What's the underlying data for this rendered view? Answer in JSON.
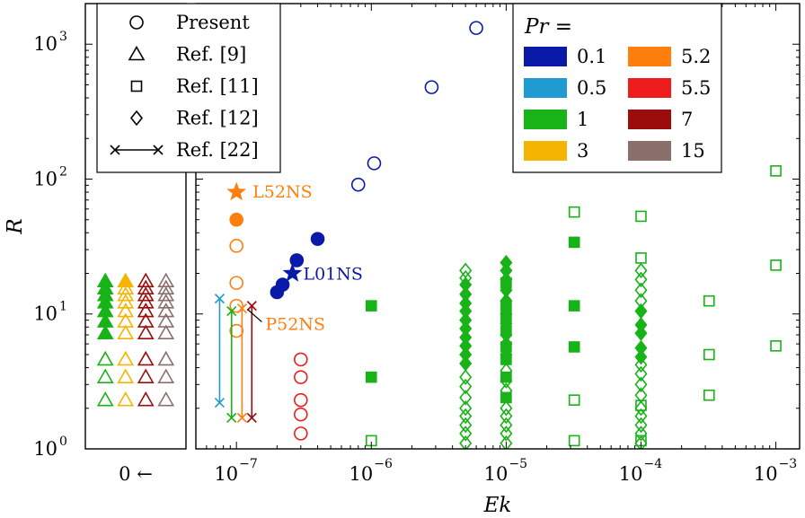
{
  "chart_data": {
    "type": "scatter",
    "xlabel": "Ek",
    "ylabel": "R",
    "xscale": "log",
    "yscale": "log",
    "xlim": [
      5e-08,
      0.0015
    ],
    "ylim": [
      1,
      2000
    ],
    "grid": false,
    "x_ticks": [
      {
        "value": 1e-07,
        "mant": "10",
        "exp": "−7"
      },
      {
        "value": 1e-06,
        "mant": "10",
        "exp": "−6"
      },
      {
        "value": 1e-05,
        "mant": "10",
        "exp": "−5"
      },
      {
        "value": 0.0001,
        "mant": "10",
        "exp": "−4"
      },
      {
        "value": 0.001,
        "mant": "10",
        "exp": "−3"
      }
    ],
    "y_ticks": [
      {
        "value": 1,
        "mant": "10",
        "exp": "0"
      },
      {
        "value": 10,
        "mant": "10",
        "exp": "1"
      },
      {
        "value": 100,
        "mant": "10",
        "exp": "2"
      },
      {
        "value": 1000,
        "mant": "10",
        "exp": "3"
      }
    ],
    "zero_panel_label": "0 ←",
    "pr_colors": {
      "0.1": "#0a1aa8",
      "0.5": "#1f9bd1",
      "1": "#17b317",
      "3": "#f5b400",
      "5.2": "#ff7f0e",
      "5.5": "#ee1c1c",
      "7": "#9b0d0d",
      "15": "#8a706c"
    },
    "legend_markers": {
      "placement": "top-left",
      "entries": [
        {
          "marker": "circle",
          "label": "Present"
        },
        {
          "marker": "triangle",
          "label": "Ref. [9]"
        },
        {
          "marker": "square",
          "label": "Ref. [11]"
        },
        {
          "marker": "diamond",
          "label": "Ref. [12]"
        },
        {
          "marker": "line-x",
          "label": "Ref. [22]"
        }
      ]
    },
    "legend_pr": {
      "title": "Pr =",
      "placement": "top-right",
      "entries": [
        "0.1",
        "0.5",
        "1",
        "3",
        "5.2",
        "5.5",
        "7",
        "15"
      ]
    },
    "annotations": [
      {
        "text": "L52NS",
        "x": 1e-07,
        "y": 80,
        "pr": "5.2"
      },
      {
        "text": "L01NS",
        "x": 2.6e-07,
        "y": 20,
        "pr": "0.1"
      },
      {
        "text": "P52NS",
        "x": 1.1e-07,
        "y": 10.5,
        "pr": "5.2"
      }
    ],
    "series": [
      {
        "source": "Present",
        "marker": "circle",
        "pr": "0.1",
        "filled": false,
        "points": [
          [
            8e-07,
            91
          ],
          [
            1.05e-06,
            131
          ],
          [
            2.8e-06,
            480
          ],
          [
            6e-06,
            1320
          ]
        ]
      },
      {
        "source": "Present",
        "marker": "circle",
        "pr": "0.1",
        "filled": true,
        "points": [
          [
            2e-07,
            14.5
          ],
          [
            2.2e-07,
            16.5
          ],
          [
            2.8e-07,
            25
          ],
          [
            4e-07,
            36
          ]
        ]
      },
      {
        "source": "Present",
        "marker": "star",
        "pr": "0.1",
        "filled": true,
        "points": [
          [
            2.6e-07,
            20
          ]
        ]
      },
      {
        "source": "Present",
        "marker": "circle",
        "pr": "5.2",
        "filled": false,
        "points": [
          [
            1e-07,
            7.5
          ],
          [
            1e-07,
            11.5
          ],
          [
            1e-07,
            17
          ],
          [
            1e-07,
            32
          ]
        ]
      },
      {
        "source": "Present",
        "marker": "circle",
        "pr": "5.2",
        "filled": true,
        "points": [
          [
            1e-07,
            50
          ]
        ]
      },
      {
        "source": "Present",
        "marker": "star",
        "pr": "5.2",
        "filled": true,
        "points": [
          [
            1e-07,
            80
          ]
        ]
      },
      {
        "source": "Present",
        "marker": "circle",
        "pr": "5.5",
        "filled": false,
        "points": [
          [
            3e-07,
            1.3
          ],
          [
            3e-07,
            1.8
          ],
          [
            3e-07,
            2.3
          ],
          [
            3e-07,
            3.4
          ],
          [
            3e-07,
            4.6
          ]
        ]
      },
      {
        "source": "Ref. [22]",
        "marker": "line-x",
        "pr": "0.5",
        "points": [
          [
            7.5e-08,
            2.2
          ],
          [
            7.5e-08,
            13
          ]
        ]
      },
      {
        "source": "Ref. [22]",
        "marker": "line-x",
        "pr": "1",
        "points": [
          [
            9.2e-08,
            1.7
          ],
          [
            9.2e-08,
            10.5
          ]
        ]
      },
      {
        "source": "Ref. [22]",
        "marker": "line-x",
        "pr": "5.2",
        "points": [
          [
            1.1e-07,
            1.7
          ],
          [
            1.1e-07,
            11
          ]
        ]
      },
      {
        "source": "Ref. [22]",
        "marker": "line-x",
        "pr": "7",
        "points": [
          [
            1.3e-07,
            1.7
          ],
          [
            1.3e-07,
            11.5
          ]
        ]
      },
      {
        "source": "Ref. [11]",
        "marker": "square",
        "pr": "1",
        "filled": true,
        "points": [
          [
            1e-06,
            3.4
          ],
          [
            1e-06,
            11.5
          ],
          [
            1e-05,
            2.4
          ],
          [
            1e-05,
            3.4
          ],
          [
            1e-05,
            4.6
          ],
          [
            1e-05,
            5.7
          ],
          [
            1e-05,
            7.5
          ],
          [
            1e-05,
            9.5
          ],
          [
            1e-05,
            11.5
          ],
          [
            1e-05,
            17
          ],
          [
            3.2e-05,
            5.7
          ],
          [
            3.2e-05,
            11.5
          ],
          [
            3.2e-05,
            34
          ]
        ]
      },
      {
        "source": "Ref. [11]",
        "marker": "square",
        "pr": "1",
        "filled": false,
        "points": [
          [
            1e-06,
            1.15
          ],
          [
            3.2e-05,
            1.15
          ],
          [
            3.2e-05,
            2.3
          ],
          [
            3.2e-05,
            57
          ],
          [
            0.0001,
            1.15
          ],
          [
            0.0001,
            2.1
          ],
          [
            0.0001,
            26
          ],
          [
            0.0001,
            53
          ],
          [
            0.00032,
            2.5
          ],
          [
            0.00032,
            5
          ],
          [
            0.00032,
            12.5
          ],
          [
            0.001,
            5.8
          ],
          [
            0.001,
            23
          ],
          [
            0.001,
            115
          ]
        ]
      },
      {
        "source": "Ref. [12]",
        "marker": "diamond",
        "pr": "1",
        "filled": true,
        "points": [
          [
            5e-06,
            4.3
          ],
          [
            5e-06,
            5
          ],
          [
            5e-06,
            5.8
          ],
          [
            5e-06,
            6.7
          ],
          [
            5e-06,
            7.8
          ],
          [
            5e-06,
            9
          ],
          [
            5e-06,
            10.5
          ],
          [
            5e-06,
            12
          ],
          [
            5e-06,
            14
          ],
          [
            5e-06,
            16.5
          ],
          [
            1e-05,
            5
          ],
          [
            1e-05,
            6
          ],
          [
            1e-05,
            7
          ],
          [
            1e-05,
            8.5
          ],
          [
            1e-05,
            10
          ],
          [
            1e-05,
            12.5
          ],
          [
            1e-05,
            15
          ],
          [
            1e-05,
            18
          ],
          [
            1e-05,
            21
          ],
          [
            1e-05,
            24
          ],
          [
            0.0001,
            4.8
          ],
          [
            0.0001,
            5.6
          ],
          [
            0.0001,
            7.2
          ],
          [
            0.0001,
            8.3
          ],
          [
            0.0001,
            10.5
          ]
        ]
      },
      {
        "source": "Ref. [12]",
        "marker": "diamond",
        "pr": "1",
        "filled": false,
        "points": [
          [
            5e-06,
            1.1
          ],
          [
            5e-06,
            1.3
          ],
          [
            5e-06,
            1.5
          ],
          [
            5e-06,
            1.75
          ],
          [
            5e-06,
            2.0
          ],
          [
            5e-06,
            2.4
          ],
          [
            5e-06,
            2.9
          ],
          [
            5e-06,
            3.4
          ],
          [
            5e-06,
            18.5
          ],
          [
            5e-06,
            21
          ],
          [
            1e-05,
            1.1
          ],
          [
            1e-05,
            1.3
          ],
          [
            1e-05,
            1.5
          ],
          [
            1e-05,
            1.75
          ],
          [
            1e-05,
            2.0
          ],
          [
            1e-05,
            2.7
          ],
          [
            1e-05,
            3.2
          ],
          [
            1e-05,
            3.8
          ],
          [
            0.0001,
            1.1
          ],
          [
            0.0001,
            1.3
          ],
          [
            0.0001,
            1.5
          ],
          [
            0.0001,
            1.75
          ],
          [
            0.0001,
            2.0
          ],
          [
            0.0001,
            2.5
          ],
          [
            0.0001,
            3.0
          ],
          [
            0.0001,
            3.6
          ],
          [
            0.0001,
            4.2
          ],
          [
            0.0001,
            12.5
          ],
          [
            0.0001,
            15
          ],
          [
            0.0001,
            18
          ],
          [
            0.0001,
            21
          ]
        ]
      },
      {
        "source": "Ref. [9]",
        "marker": "triangle",
        "ek": 0,
        "columns": [
          {
            "pr": "1",
            "filled": [
              7.2,
              8.8,
              10.5,
              12.2,
              13.8,
              15.5,
              17.5
            ],
            "open": [
              2.3,
              3.4,
              4.6
            ]
          },
          {
            "pr": "3",
            "filled": [
              17.5
            ],
            "open": [
              2.3,
              3.4,
              4.6,
              7.2,
              8.8,
              10.5,
              12.2,
              13.8,
              15.5
            ]
          },
          {
            "pr": "7",
            "filled": [],
            "open": [
              2.3,
              3.4,
              4.6,
              7.2,
              8.8,
              10.5,
              12.2,
              13.8,
              15.5,
              17.5
            ]
          },
          {
            "pr": "15",
            "filled": [],
            "open": [
              2.3,
              3.4,
              4.6,
              7.2,
              8.8,
              10.5,
              12.2,
              13.8,
              15.5,
              17.5
            ]
          }
        ]
      }
    ]
  }
}
